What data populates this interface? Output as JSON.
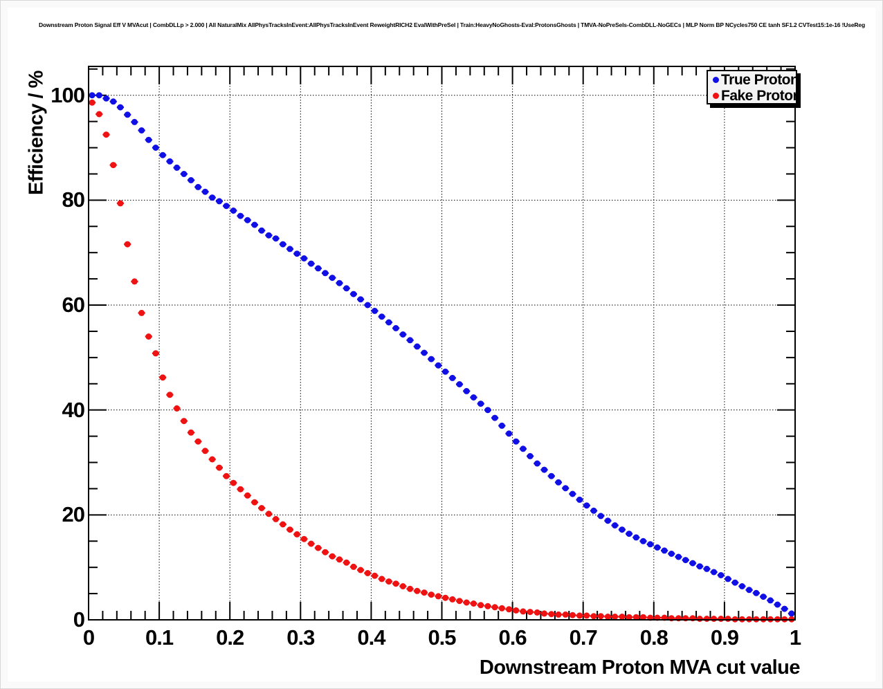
{
  "header": {
    "title": "Downstream Proton Signal Eff V MVAcut | CombDLLp > 2.000 | All NaturalMix AllPhysTracksInEvent:AllPhysTracksInEvent ReweightRICH2 EvalWithPreSel | Train:HeavyNoGhosts-Eval:ProtonsGhosts | TMVA-NoPreSels-CombDLL-NoGECs | MLP Norm BP NCycles750 CE tanh SF1.2 CVTest15:1e-16 !UseReg"
  },
  "legend": {
    "items": [
      {
        "label": "True Proton",
        "color": "#0f0fe6"
      },
      {
        "label": "Fake Proton",
        "color": "#ef1212"
      }
    ]
  },
  "axes": {
    "x": {
      "title": "Downstream Proton MVA cut value",
      "tick_labels": [
        "0",
        "0.1",
        "0.2",
        "0.3",
        "0.4",
        "0.5",
        "0.6",
        "0.7",
        "0.8",
        "0.9",
        "1"
      ],
      "tick_values": [
        0,
        0.1,
        0.2,
        0.3,
        0.4,
        0.5,
        0.6,
        0.7,
        0.8,
        0.9,
        1
      ],
      "minor_step": 0.02
    },
    "y": {
      "title": "Efficiency / %",
      "tick_labels": [
        "0",
        "20",
        "40",
        "60",
        "80",
        "100"
      ],
      "tick_values": [
        0,
        20,
        40,
        60,
        80,
        100
      ],
      "minor_step": 5
    }
  },
  "chart_data": {
    "type": "scatter",
    "title": "Downstream Proton Signal Eff V MVAcut | CombDLLp > 2.000 | All NaturalMix AllPhysTracksInEvent:AllPhysTracksInEvent ReweightRICH2 EvalWithPreSel | Train:HeavyNoGhosts-Eval:ProtonsGhosts | TMVA-NoPreSels-CombDLL-NoGECs | MLP Norm BP NCycles750 CE tanh SF1.2 CVTest15:1e-16 !UseReg",
    "xlabel": "Downstream Proton MVA cut value",
    "ylabel": "Efficiency / %",
    "xlim": [
      0,
      1
    ],
    "ylim": [
      0,
      105.5
    ],
    "grid": "dotted-at-major-ticks",
    "legend_position": "top-right",
    "x_start": 0.005,
    "x_step": 0.01,
    "x_error": 0.005,
    "series": [
      {
        "name": "True Proton",
        "color": "#0f0fe6",
        "marker": "circle",
        "values": [
          100,
          100,
          99.4,
          98.8,
          97.7,
          96.3,
          94.9,
          93.3,
          91.5,
          90.0,
          88.6,
          87.4,
          86.2,
          85.0,
          83.8,
          82.5,
          81.6,
          80.5,
          79.8,
          78.9,
          78.0,
          77.0,
          76.2,
          75.3,
          74.2,
          73.3,
          72.7,
          71.6,
          70.7,
          69.8,
          68.9,
          67.9,
          67.0,
          66.1,
          65.2,
          64.2,
          63.2,
          62.1,
          61.1,
          60.0,
          58.9,
          57.8,
          56.7,
          55.6,
          54.4,
          53.3,
          52.1,
          50.9,
          49.7,
          48.5,
          47.3,
          46.1,
          44.9,
          43.6,
          42.4,
          41.2,
          40.0,
          38.5,
          37.0,
          35.5,
          34.0,
          32.6,
          31.2,
          29.8,
          28.6,
          27.4,
          26.2,
          25.1,
          24.0,
          22.9,
          21.8,
          20.8,
          19.8,
          18.9,
          18.0,
          17.2,
          16.4,
          15.7,
          15.0,
          14.4,
          13.8,
          13.2,
          12.6,
          12.0,
          11.4,
          10.8,
          10.2,
          9.7,
          9.1,
          8.5,
          7.8,
          7.1,
          6.4,
          5.7,
          5.1,
          4.4,
          3.7,
          2.9,
          2.1,
          1.2
        ]
      },
      {
        "name": "Fake Proton",
        "color": "#ef1212",
        "marker": "circle",
        "values": [
          98.6,
          96.4,
          92.5,
          86.7,
          79.4,
          71.6,
          64.5,
          58.5,
          54.0,
          50.8,
          46.2,
          42.9,
          40.3,
          37.9,
          35.7,
          34.0,
          32.2,
          30.6,
          29.0,
          27.4,
          26.1,
          24.9,
          23.7,
          22.4,
          21.3,
          20.2,
          19.2,
          18.2,
          17.2,
          16.3,
          15.4,
          14.5,
          13.7,
          12.9,
          12.1,
          11.5,
          10.9,
          10.1,
          9.5,
          8.9,
          8.4,
          7.8,
          7.3,
          6.9,
          6.4,
          5.9,
          5.5,
          5.2,
          4.8,
          4.5,
          4.2,
          3.9,
          3.6,
          3.3,
          3.1,
          2.8,
          2.6,
          2.4,
          2.2,
          2.0,
          1.8,
          1.6,
          1.5,
          1.4,
          1.2,
          1.1,
          1.0,
          1.0,
          0.9,
          0.8,
          0.8,
          0.7,
          0.7,
          0.6,
          0.6,
          0.6,
          0.5,
          0.5,
          0.5,
          0.4,
          0.4,
          0.4,
          0.3,
          0.3,
          0.3,
          0.3,
          0.2,
          0.2,
          0.2,
          0.2,
          0.2,
          0.1,
          0.1,
          0.1,
          0.1,
          0.1,
          0.1,
          0.1,
          0.1,
          0.1
        ]
      }
    ]
  }
}
